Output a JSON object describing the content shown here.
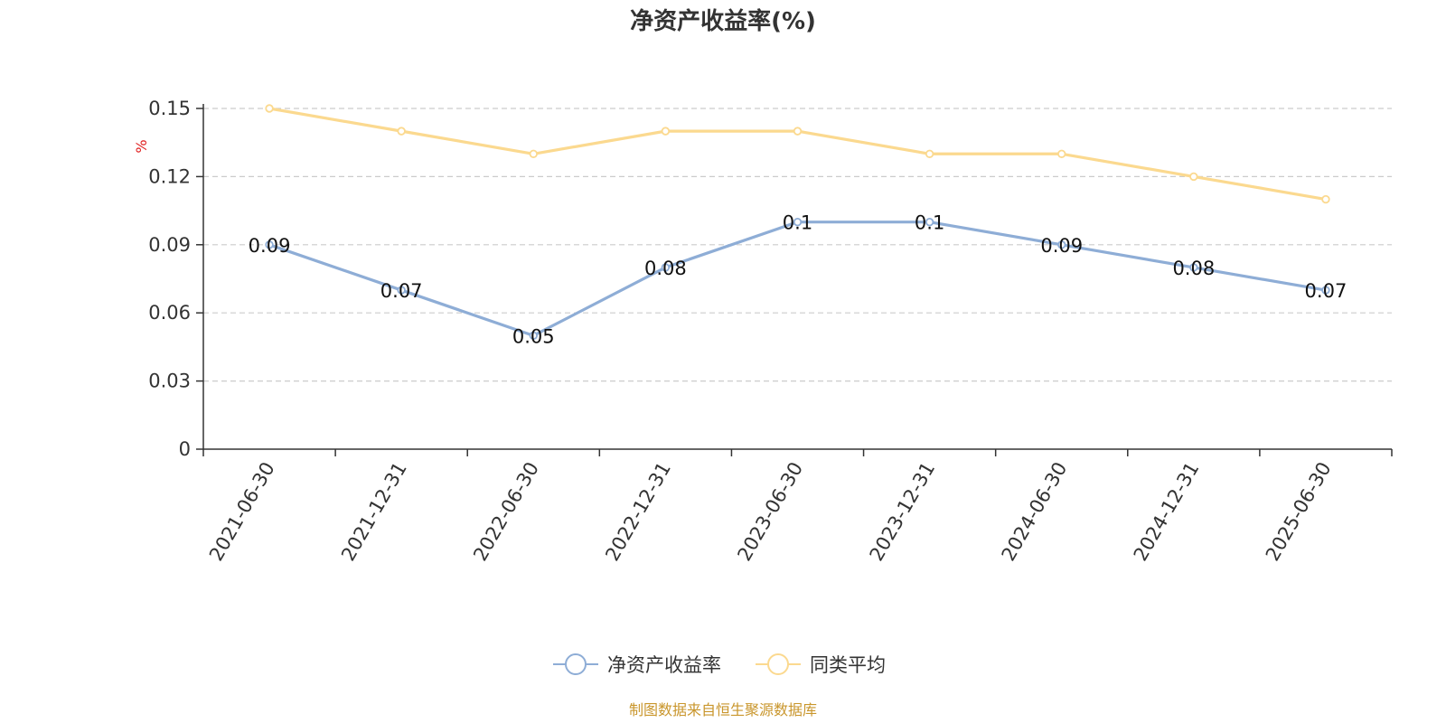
{
  "chart_data": {
    "type": "line",
    "title": "净资产收益率(%)",
    "ylabel": "%",
    "categories": [
      "2021-06-30",
      "2021-12-31",
      "2022-06-30",
      "2022-12-31",
      "2023-06-30",
      "2023-12-31",
      "2024-06-30",
      "2024-12-31",
      "2025-06-30"
    ],
    "ylim": [
      0,
      0.15
    ],
    "yticks": [
      "0",
      "0.03",
      "0.06",
      "0.09",
      "0.12",
      "0.15"
    ],
    "grid": true,
    "legend_position": "bottom-center",
    "series": [
      {
        "name": "净资产收益率",
        "color": "#8eadd6",
        "values": [
          0.09,
          0.07,
          0.05,
          0.08,
          0.1,
          0.1,
          0.09,
          0.08,
          0.07
        ],
        "data_labels": [
          "0.09",
          "0.07",
          "0.05",
          "0.08",
          "0.1",
          "0.1",
          "0.09",
          "0.08",
          "0.07"
        ]
      },
      {
        "name": "同类平均",
        "color": "#fbd98f",
        "values": [
          0.15,
          0.14,
          0.13,
          0.14,
          0.14,
          0.13,
          0.13,
          0.12,
          0.11
        ]
      }
    ]
  },
  "footer": {
    "source": "制图数据来自恒生聚源数据库"
  }
}
